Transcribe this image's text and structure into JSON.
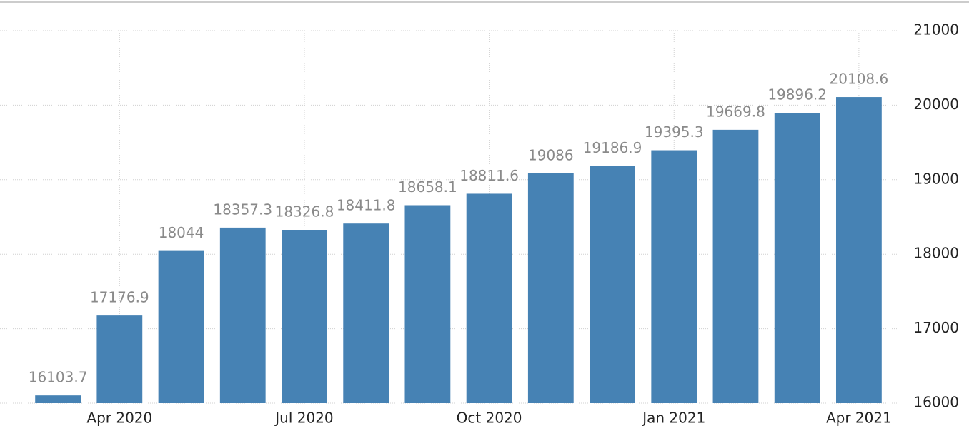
{
  "chart_data": {
    "type": "bar",
    "categories": [
      null,
      "Apr 2020",
      null,
      null,
      "Jul 2020",
      null,
      null,
      "Oct 2020",
      null,
      null,
      "Jan 2021",
      null,
      null,
      "Apr 2021"
    ],
    "values": [
      16103.7,
      17176.9,
      18044,
      18357.3,
      18326.8,
      18411.8,
      18658.1,
      18811.6,
      19086,
      19186.9,
      19395.3,
      19669.8,
      19896.2,
      20108.6
    ],
    "color": "#4682b4",
    "ylim": [
      16000,
      21000
    ],
    "yticks": [
      16000,
      17000,
      18000,
      19000,
      20000,
      21000
    ],
    "grid": true,
    "y_axis_side": "right"
  }
}
